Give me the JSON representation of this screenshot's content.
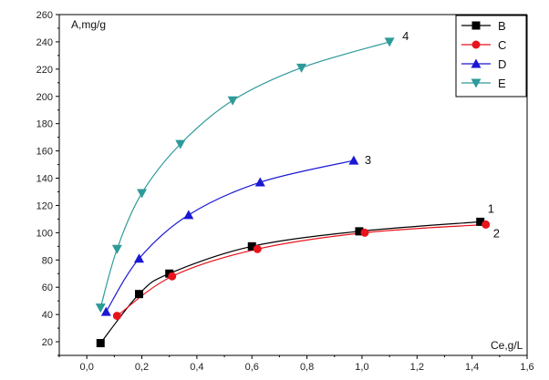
{
  "chart_data": {
    "type": "line",
    "xlabel": "Ce,g/L",
    "ylabel": "A,mg/g",
    "xlim": [
      -0.1,
      1.6
    ],
    "ylim": [
      10,
      260
    ],
    "x_ticks": [
      0.0,
      0.2,
      0.4,
      0.6,
      0.8,
      1.0,
      1.2,
      1.4,
      1.6
    ],
    "x_tick_labels": [
      "0,0",
      "0,2",
      "0,4",
      "0,6",
      "0,8",
      "1,0",
      "1,2",
      "1,4",
      "1,6"
    ],
    "y_ticks": [
      20,
      40,
      60,
      80,
      100,
      120,
      140,
      160,
      180,
      200,
      220,
      240,
      260
    ],
    "y_tick_labels": [
      "20",
      "40",
      "60",
      "80",
      "100",
      "120",
      "140",
      "160",
      "180",
      "200",
      "220",
      "240",
      "260"
    ],
    "legend_position": "top-right",
    "grid": false,
    "series": [
      {
        "name": "B",
        "color": "#000000",
        "marker": "square",
        "curve_label": "1",
        "points": [
          [
            0.05,
            19
          ],
          [
            0.19,
            55
          ],
          [
            0.3,
            70
          ],
          [
            0.6,
            90
          ],
          [
            0.99,
            101
          ],
          [
            1.43,
            108
          ]
        ]
      },
      {
        "name": "C",
        "color": "#e8131b",
        "marker": "circle",
        "curve_label": "2",
        "points": [
          [
            0.11,
            39
          ],
          [
            0.31,
            68
          ],
          [
            0.62,
            88
          ],
          [
            1.01,
            100
          ],
          [
            1.45,
            106
          ]
        ]
      },
      {
        "name": "D",
        "color": "#1b17d4",
        "marker": "triangle-up",
        "curve_label": "3",
        "points": [
          [
            0.07,
            42
          ],
          [
            0.19,
            81
          ],
          [
            0.37,
            113
          ],
          [
            0.63,
            137
          ],
          [
            0.97,
            153
          ]
        ]
      },
      {
        "name": "E",
        "color": "#2e9a9a",
        "marker": "triangle-down",
        "curve_label": "4",
        "points": [
          [
            0.05,
            45
          ],
          [
            0.11,
            88
          ],
          [
            0.2,
            129
          ],
          [
            0.34,
            165
          ],
          [
            0.53,
            197
          ],
          [
            0.78,
            221
          ],
          [
            1.1,
            240
          ]
        ]
      }
    ]
  }
}
